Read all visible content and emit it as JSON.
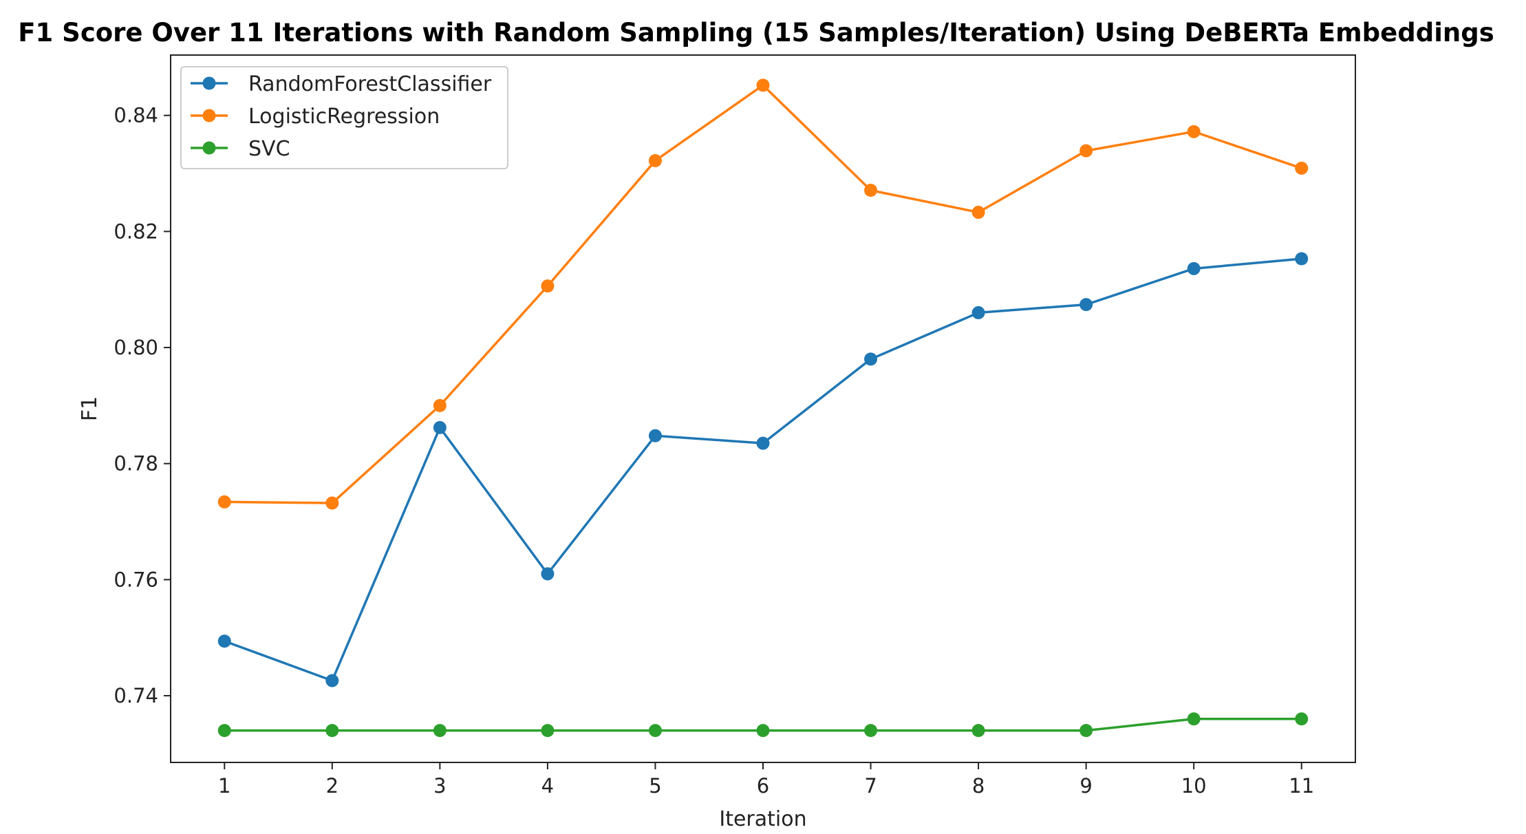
{
  "chart_data": {
    "type": "line",
    "title": "F1 Score Over 11 Iterations with Random Sampling (15 Samples/Iteration) Using DeBERTa Embeddings",
    "xlabel": "Iteration",
    "ylabel": "F1",
    "x": [
      1,
      2,
      3,
      4,
      5,
      6,
      7,
      8,
      9,
      10,
      11
    ],
    "x_ticks": [
      "1",
      "2",
      "3",
      "4",
      "5",
      "6",
      "7",
      "8",
      "9",
      "10",
      "11"
    ],
    "y_ticks": [
      "0.74",
      "0.76",
      "0.78",
      "0.80",
      "0.82",
      "0.84"
    ],
    "xlim": [
      0.5,
      11.5
    ],
    "ylim": [
      0.7285,
      0.8504
    ],
    "grid": false,
    "legend_position": "top-left",
    "series": [
      {
        "name": "RandomForestClassifier",
        "color": "#1f77b4",
        "values": [
          0.7494,
          0.7426,
          0.7862,
          0.761,
          0.7848,
          0.7835,
          0.798,
          0.806,
          0.8074,
          0.8136,
          0.8153
        ]
      },
      {
        "name": "LogisticRegression",
        "color": "#ff7f0e",
        "values": [
          0.7734,
          0.7732,
          0.79,
          0.8106,
          0.8322,
          0.8452,
          0.8271,
          0.8233,
          0.8339,
          0.8372,
          0.8309
        ]
      },
      {
        "name": "SVC",
        "color": "#2ca02c",
        "values": [
          0.734,
          0.734,
          0.734,
          0.734,
          0.734,
          0.734,
          0.734,
          0.734,
          0.734,
          0.736,
          0.736
        ]
      }
    ]
  }
}
